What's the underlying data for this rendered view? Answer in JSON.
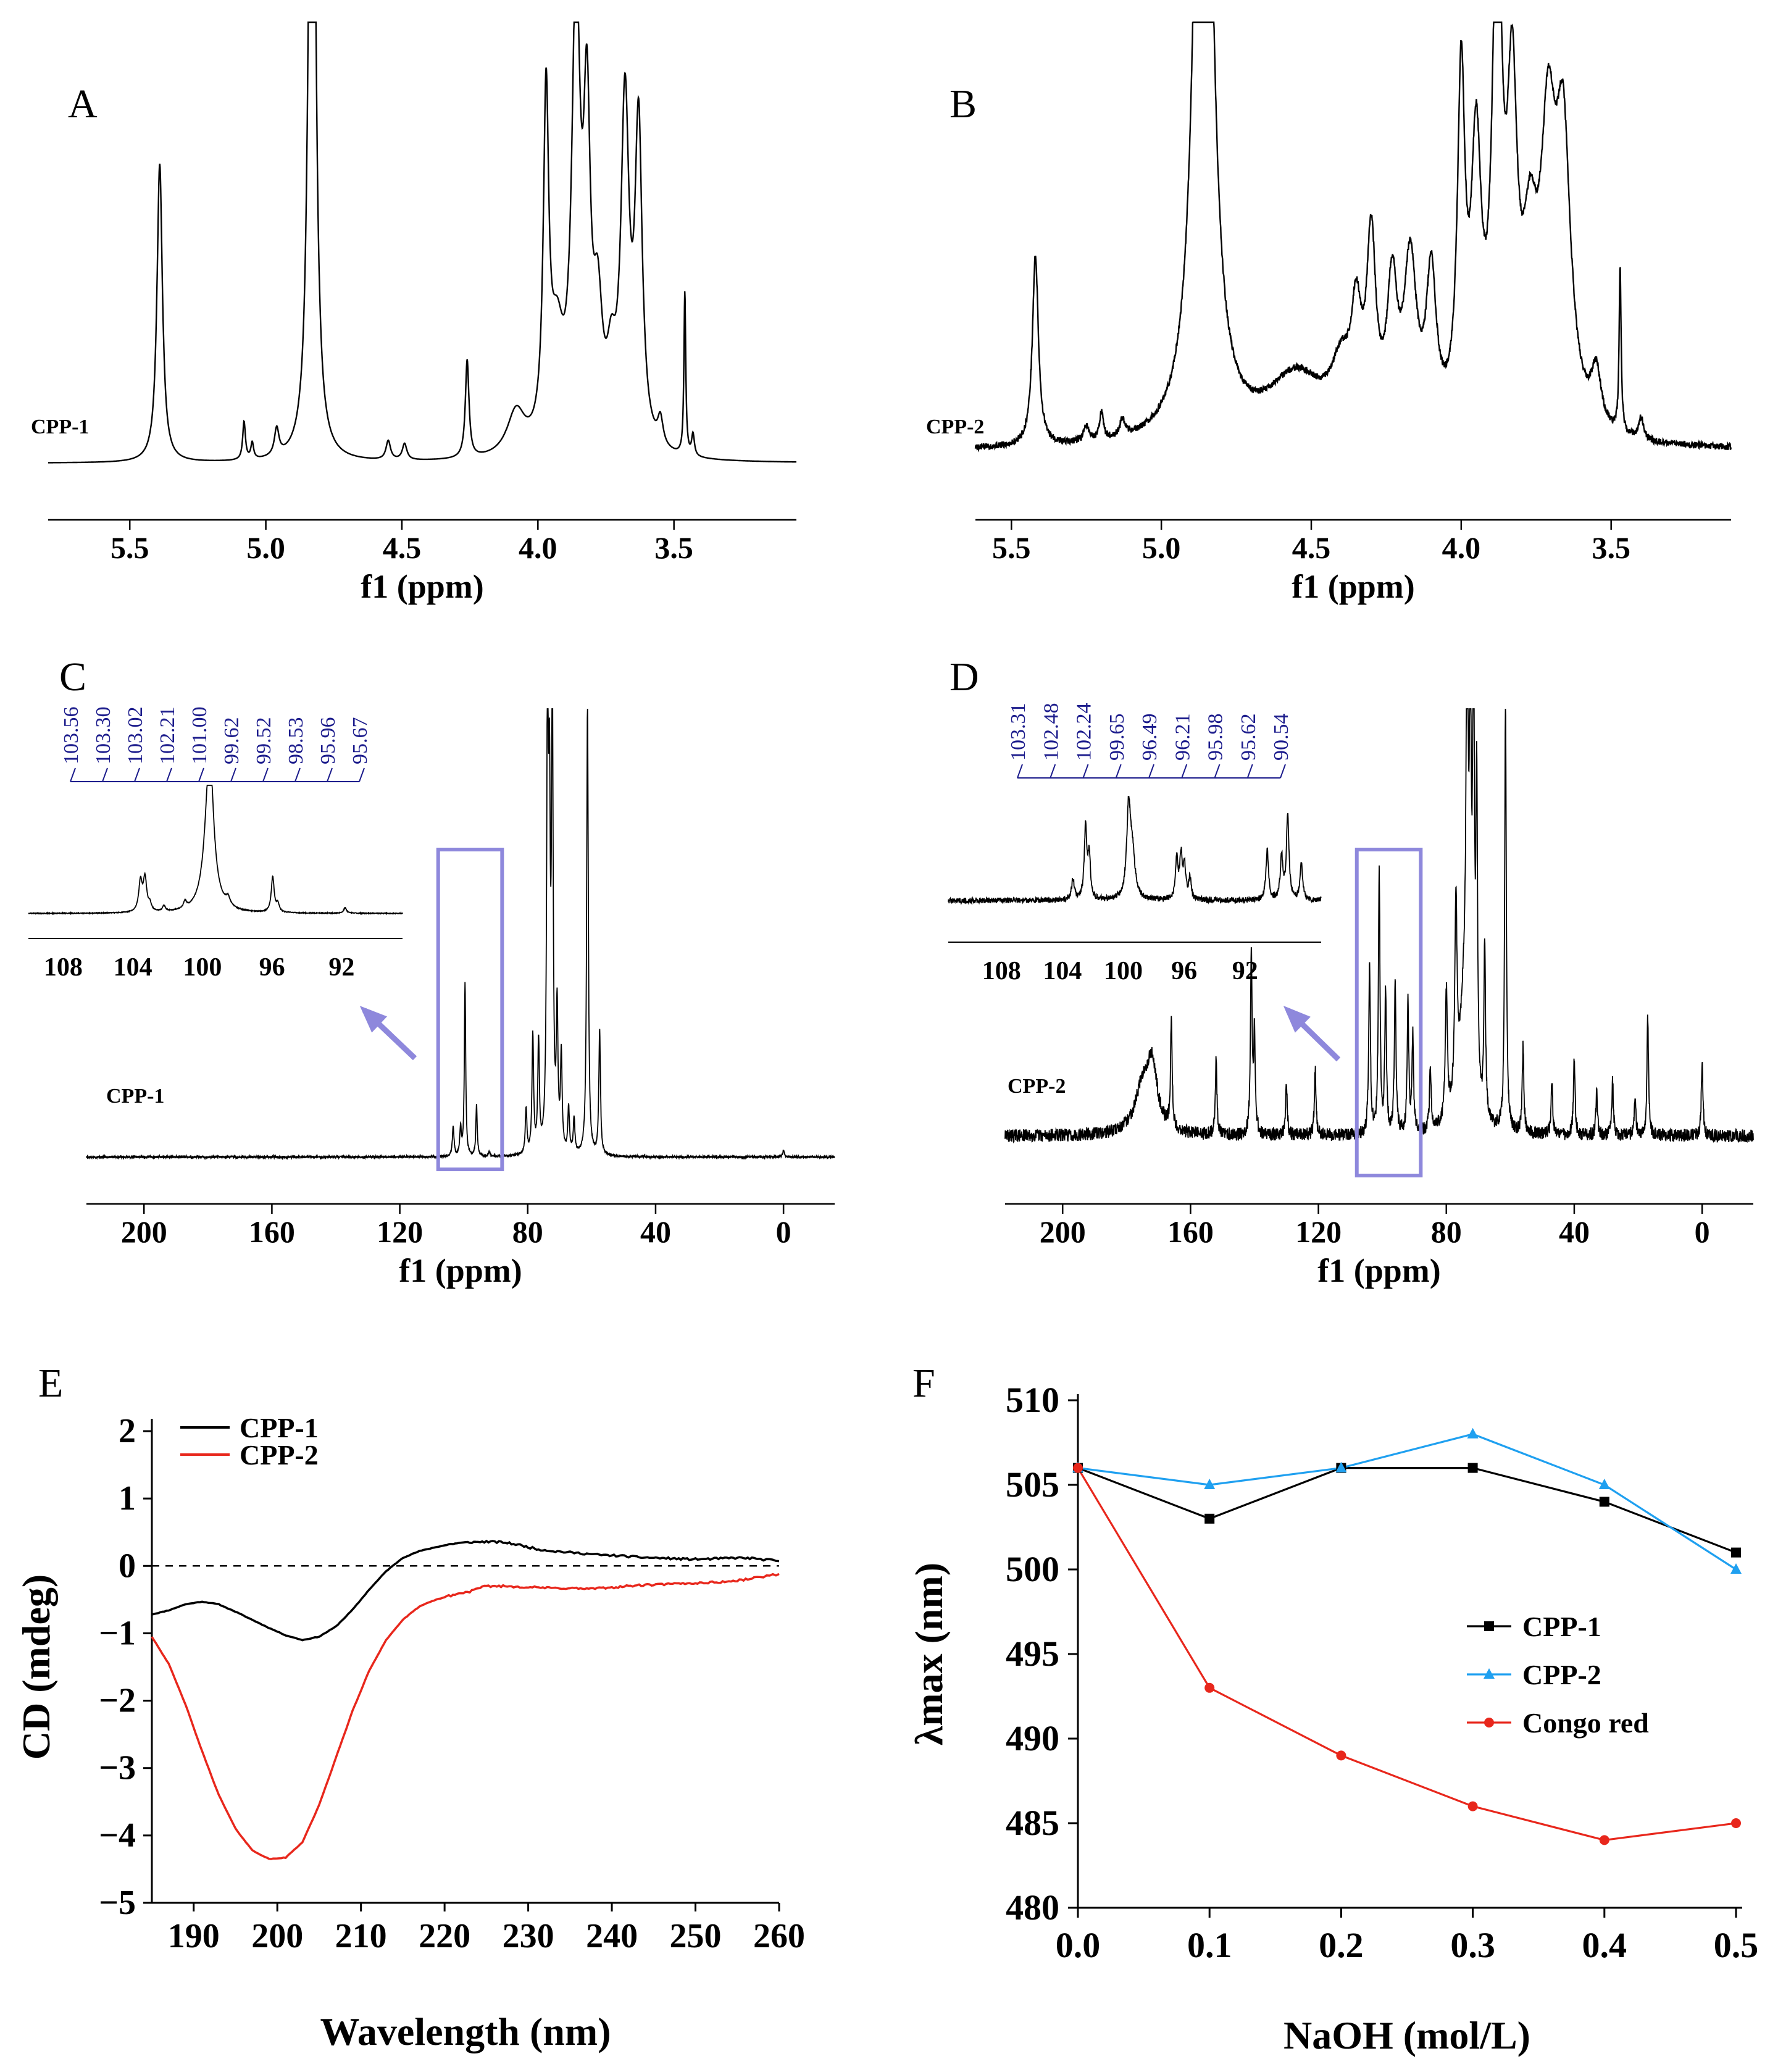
{
  "chart_data": [
    {
      "panel": "A",
      "type": "line",
      "sample_label": "CPP-1",
      "xlabel": "f1 (ppm)",
      "xlim": [
        5.8,
        3.05
      ],
      "xticks": [
        "5.5",
        "5.0",
        "4.5",
        "4.0",
        "3.5"
      ],
      "baseline": 0.02,
      "noise": 0.0,
      "peaks": [
        [
          5.39,
          0.55,
          0.012
        ],
        [
          5.08,
          0.07,
          0.006
        ],
        [
          5.05,
          0.03,
          0.006
        ],
        [
          4.96,
          0.05,
          0.01
        ],
        [
          4.83,
          2.0,
          0.012
        ],
        [
          4.55,
          0.035,
          0.01
        ],
        [
          4.49,
          0.03,
          0.01
        ],
        [
          4.26,
          0.18,
          0.008
        ],
        [
          4.08,
          0.08,
          0.04
        ],
        [
          3.97,
          0.62,
          0.012
        ],
        [
          3.93,
          0.18,
          0.03
        ],
        [
          3.86,
          0.82,
          0.018
        ],
        [
          3.82,
          0.55,
          0.015
        ],
        [
          3.78,
          0.22,
          0.02
        ],
        [
          3.68,
          0.62,
          0.018
        ],
        [
          3.63,
          0.58,
          0.016
        ],
        [
          3.73,
          0.12,
          0.02
        ],
        [
          3.55,
          0.05,
          0.012
        ],
        [
          3.46,
          0.3,
          0.004
        ],
        [
          3.43,
          0.04,
          0.006
        ]
      ]
    },
    {
      "panel": "B",
      "type": "line",
      "sample_label": "CPP-2",
      "xlabel": "f1 (ppm)",
      "xlim": [
        5.62,
        3.1
      ],
      "xticks": [
        "5.5",
        "5.0",
        "4.5",
        "4.0",
        "3.5"
      ],
      "baseline": 0.03,
      "noise": 0.012,
      "peaks": [
        [
          5.42,
          0.35,
          0.012
        ],
        [
          5.25,
          0.03,
          0.01
        ],
        [
          5.2,
          0.05,
          0.008
        ],
        [
          5.13,
          0.03,
          0.01
        ],
        [
          4.86,
          2.0,
          0.028
        ],
        [
          4.55,
          0.12,
          0.12
        ],
        [
          4.4,
          0.1,
          0.04
        ],
        [
          4.35,
          0.18,
          0.02
        ],
        [
          4.3,
          0.33,
          0.018
        ],
        [
          4.23,
          0.25,
          0.02
        ],
        [
          4.17,
          0.3,
          0.025
        ],
        [
          4.1,
          0.27,
          0.02
        ],
        [
          4.0,
          0.62,
          0.015
        ],
        [
          3.95,
          0.48,
          0.02
        ],
        [
          3.88,
          0.92,
          0.018
        ],
        [
          3.83,
          0.55,
          0.02
        ],
        [
          3.77,
          0.28,
          0.03
        ],
        [
          3.71,
          0.48,
          0.03
        ],
        [
          3.66,
          0.5,
          0.03
        ],
        [
          3.55,
          0.1,
          0.02
        ],
        [
          3.47,
          0.3,
          0.004
        ],
        [
          3.4,
          0.04,
          0.01
        ]
      ]
    },
    {
      "panel": "C",
      "type": "line",
      "sample_label": "CPP-1",
      "xlabel": "f1 (ppm)",
      "xlim": [
        218,
        -16
      ],
      "xticks": [
        "200",
        "160",
        "120",
        "80",
        "40",
        "0"
      ],
      "baseline": 0.0,
      "noise": 0.01,
      "peaks": [
        [
          103.3,
          0.13,
          0.3
        ],
        [
          101.0,
          0.12,
          0.3
        ],
        [
          99.6,
          0.76,
          0.25
        ],
        [
          96.0,
          0.23,
          0.25
        ],
        [
          92.0,
          0.02,
          0.3
        ],
        [
          80.5,
          0.2,
          0.3
        ],
        [
          78.4,
          0.52,
          0.3
        ],
        [
          76.6,
          0.48,
          0.3
        ],
        [
          73.8,
          2.0,
          0.3
        ],
        [
          73.2,
          1.3,
          0.3
        ],
        [
          72.3,
          2.0,
          0.3
        ],
        [
          70.8,
          0.6,
          0.3
        ],
        [
          69.5,
          0.42,
          0.3
        ],
        [
          67.2,
          0.2,
          0.3
        ],
        [
          65.5,
          0.15,
          0.3
        ],
        [
          61.3,
          2.0,
          0.3
        ],
        [
          57.5,
          0.55,
          0.3
        ],
        [
          0.0,
          0.03,
          0.3
        ]
      ],
      "highlight_box": [
        108,
        88
      ],
      "inset": {
        "xlim": [
          110,
          88.5
        ],
        "xticks": [
          "108",
          "104",
          "100",
          "96",
          "92"
        ],
        "baseline": 0.02,
        "noise": 0.006,
        "peaks": [
          [
            103.56,
            0.22,
            0.12
          ],
          [
            103.3,
            0.24,
            0.12
          ],
          [
            103.02,
            0.05,
            0.1
          ],
          [
            102.21,
            0.04,
            0.1
          ],
          [
            101.0,
            0.05,
            0.1
          ],
          [
            99.62,
            0.9,
            0.32
          ],
          [
            99.52,
            0.3,
            0.2
          ],
          [
            98.53,
            0.06,
            0.15
          ],
          [
            95.96,
            0.26,
            0.1
          ],
          [
            95.67,
            0.06,
            0.1
          ],
          [
            91.8,
            0.04,
            0.1
          ]
        ],
        "labels": [
          "103.56",
          "103.30",
          "103.02",
          "102.21",
          "101.00",
          "99.62",
          "99.52",
          "98.53",
          "95.96",
          "95.67"
        ]
      }
    },
    {
      "panel": "D",
      "type": "line",
      "sample_label": "CPP-2",
      "xlabel": "f1 (ppm)",
      "xlim": [
        218,
        -16
      ],
      "xticks": [
        "200",
        "160",
        "120",
        "80",
        "40",
        "0"
      ],
      "baseline": 0.0,
      "noise": 0.06,
      "peaks": [
        [
          175,
          0.2,
          3
        ],
        [
          172,
          0.28,
          2
        ],
        [
          166,
          0.5,
          0.3
        ],
        [
          152,
          0.35,
          0.3
        ],
        [
          141,
          0.85,
          0.3
        ],
        [
          140,
          0.45,
          0.3
        ],
        [
          130,
          0.25,
          0.3
        ],
        [
          121,
          0.3,
          0.3
        ],
        [
          104,
          0.8,
          0.3
        ],
        [
          101,
          1.2,
          0.3
        ],
        [
          99,
          0.65,
          0.3
        ],
        [
          96,
          0.7,
          0.3
        ],
        [
          92,
          0.6,
          0.3
        ],
        [
          90.5,
          0.45,
          0.3
        ],
        [
          85,
          0.3,
          0.3
        ],
        [
          80,
          0.6,
          0.4
        ],
        [
          77,
          0.9,
          0.4
        ],
        [
          74,
          0.7,
          2
        ],
        [
          73.5,
          2.0,
          0.3
        ],
        [
          72.5,
          1.8,
          0.3
        ],
        [
          71.5,
          2.0,
          0.3
        ],
        [
          70.5,
          1.4,
          0.3
        ],
        [
          68,
          0.8,
          0.3
        ],
        [
          61.5,
          2.0,
          0.3
        ],
        [
          56,
          0.4,
          0.3
        ],
        [
          47,
          0.25,
          0.3
        ],
        [
          40,
          0.35,
          0.3
        ],
        [
          33,
          0.2,
          0.3
        ],
        [
          28,
          0.25,
          0.3
        ],
        [
          21,
          0.18,
          0.3
        ],
        [
          17,
          0.55,
          0.3
        ],
        [
          0,
          0.35,
          0.3
        ]
      ],
      "highlight_box": [
        108,
        88
      ],
      "inset": {
        "xlim": [
          111.5,
          87.0
        ],
        "xticks": [
          "108",
          "104",
          "100",
          "96",
          "92"
        ],
        "baseline": 0.05,
        "noise": 0.04,
        "peaks": [
          [
            103.31,
            0.15,
            0.1
          ],
          [
            102.48,
            0.5,
            0.1
          ],
          [
            102.24,
            0.3,
            0.1
          ],
          [
            99.65,
            0.62,
            0.15
          ],
          [
            99.4,
            0.3,
            0.2
          ],
          [
            96.49,
            0.28,
            0.1
          ],
          [
            96.21,
            0.3,
            0.1
          ],
          [
            95.98,
            0.22,
            0.1
          ],
          [
            95.62,
            0.15,
            0.1
          ],
          [
            90.54,
            0.35,
            0.1
          ],
          [
            89.6,
            0.3,
            0.1
          ],
          [
            89.2,
            0.6,
            0.1
          ],
          [
            88.3,
            0.25,
            0.1
          ]
        ],
        "labels": [
          "103.31",
          "102.48",
          "102.24",
          "99.65",
          "96.49",
          "96.21",
          "95.98",
          "95.62",
          "90.54"
        ]
      }
    },
    {
      "panel": "E",
      "type": "line",
      "xlabel": "Wavelength (nm)",
      "ylabel": "CD (mdeg)",
      "xlim": [
        185,
        260
      ],
      "ylim": [
        -5,
        2
      ],
      "xticks": [
        "190",
        "200",
        "210",
        "220",
        "230",
        "240",
        "250",
        "260"
      ],
      "yticks": [
        "2",
        "1",
        "0",
        "−1",
        "−2",
        "−3",
        "−4",
        "−5"
      ],
      "series": [
        {
          "name": "CPP-1",
          "color": "#000000",
          "x": [
            185,
            187,
            189,
            191,
            193,
            195,
            197,
            199,
            201,
            203,
            205,
            207,
            209,
            211,
            213,
            215,
            217,
            219,
            221,
            223,
            225,
            227,
            229,
            231,
            233,
            235,
            237,
            239,
            241,
            243,
            245,
            247,
            249,
            251,
            253,
            255,
            257,
            260
          ],
          "y": [
            -0.72,
            -0.66,
            -0.57,
            -0.53,
            -0.57,
            -0.68,
            -0.8,
            -0.92,
            -1.03,
            -1.1,
            -1.05,
            -0.9,
            -0.65,
            -0.35,
            -0.08,
            0.12,
            0.22,
            0.28,
            0.33,
            0.35,
            0.36,
            0.35,
            0.31,
            0.25,
            0.22,
            0.2,
            0.18,
            0.16,
            0.15,
            0.13,
            0.12,
            0.11,
            0.1,
            0.1,
            0.11,
            0.12,
            0.11,
            0.07
          ]
        },
        {
          "name": "CPP-2",
          "color": "#e8271c",
          "x": [
            185,
            187,
            189,
            191,
            193,
            195,
            197,
            199,
            201,
            203,
            205,
            207,
            209,
            211,
            213,
            215,
            217,
            219,
            221,
            223,
            225,
            227,
            229,
            231,
            233,
            235,
            237,
            239,
            241,
            243,
            245,
            247,
            249,
            251,
            253,
            255,
            257,
            260
          ],
          "y": [
            -1.05,
            -1.45,
            -2.05,
            -2.75,
            -3.4,
            -3.9,
            -4.22,
            -4.35,
            -4.33,
            -4.1,
            -3.55,
            -2.85,
            -2.15,
            -1.55,
            -1.1,
            -0.8,
            -0.6,
            -0.5,
            -0.43,
            -0.38,
            -0.3,
            -0.3,
            -0.31,
            -0.32,
            -0.33,
            -0.33,
            -0.34,
            -0.33,
            -0.31,
            -0.29,
            -0.28,
            -0.27,
            -0.26,
            -0.25,
            -0.24,
            -0.22,
            -0.18,
            -0.12
          ]
        }
      ]
    },
    {
      "panel": "F",
      "type": "line",
      "xlabel": "NaOH (mol/L)",
      "ylabel": "λmax (nm)",
      "xlim": [
        0,
        0.5
      ],
      "ylim": [
        480,
        510
      ],
      "xticks": [
        "0.0",
        "0.1",
        "0.2",
        "0.3",
        "0.4",
        "0.5"
      ],
      "yticks": [
        "510",
        "505",
        "500",
        "495",
        "490",
        "485",
        "480"
      ],
      "x": [
        0.0,
        0.1,
        0.2,
        0.3,
        0.4,
        0.5
      ],
      "series": [
        {
          "name": "CPP-1",
          "color": "#000000",
          "marker": "square",
          "values": [
            506,
            503,
            506,
            506,
            504,
            501
          ]
        },
        {
          "name": "CPP-2",
          "color": "#1fa0f0",
          "marker": "triangle",
          "values": [
            506,
            505,
            506,
            508,
            505,
            500
          ]
        },
        {
          "name": "Congo red",
          "color": "#e8271c",
          "marker": "circle",
          "values": [
            506,
            493,
            489,
            486,
            484,
            485
          ]
        }
      ]
    }
  ]
}
